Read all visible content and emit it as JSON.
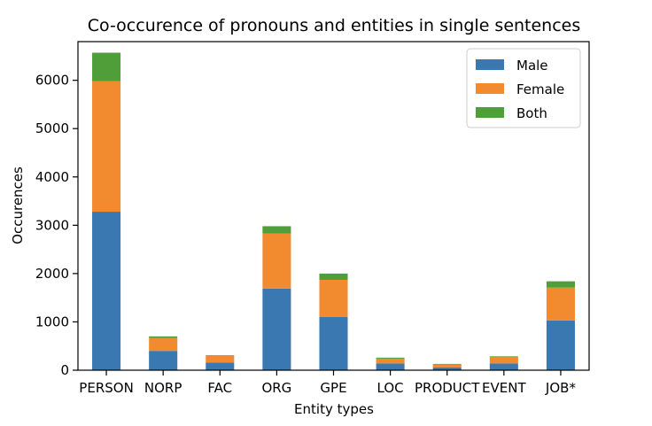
{
  "chart_data": {
    "type": "bar",
    "stacked": true,
    "title": "Co-occurence of pronouns and entities in single sentences",
    "xlabel": "Entity types",
    "ylabel": "Occurences",
    "ylim": [
      0,
      6800
    ],
    "yticks": [
      0,
      1000,
      2000,
      3000,
      4000,
      5000,
      6000
    ],
    "categories": [
      "PERSON",
      "NORP",
      "FAC",
      "ORG",
      "GPE",
      "LOC",
      "PRODUCT",
      "EVENT",
      "JOB*"
    ],
    "series": [
      {
        "name": "Male",
        "color": "#3a78b2",
        "values": [
          3280,
          400,
          160,
          1690,
          1100,
          140,
          60,
          140,
          1030
        ]
      },
      {
        "name": "Female",
        "color": "#f28a30",
        "values": [
          2700,
          270,
          140,
          1140,
          770,
          100,
          60,
          140,
          680
        ]
      },
      {
        "name": "Both",
        "color": "#4f9e3a",
        "values": [
          590,
          30,
          10,
          150,
          130,
          20,
          10,
          10,
          130
        ]
      }
    ],
    "legend_position": "top-right",
    "grid": false
  }
}
